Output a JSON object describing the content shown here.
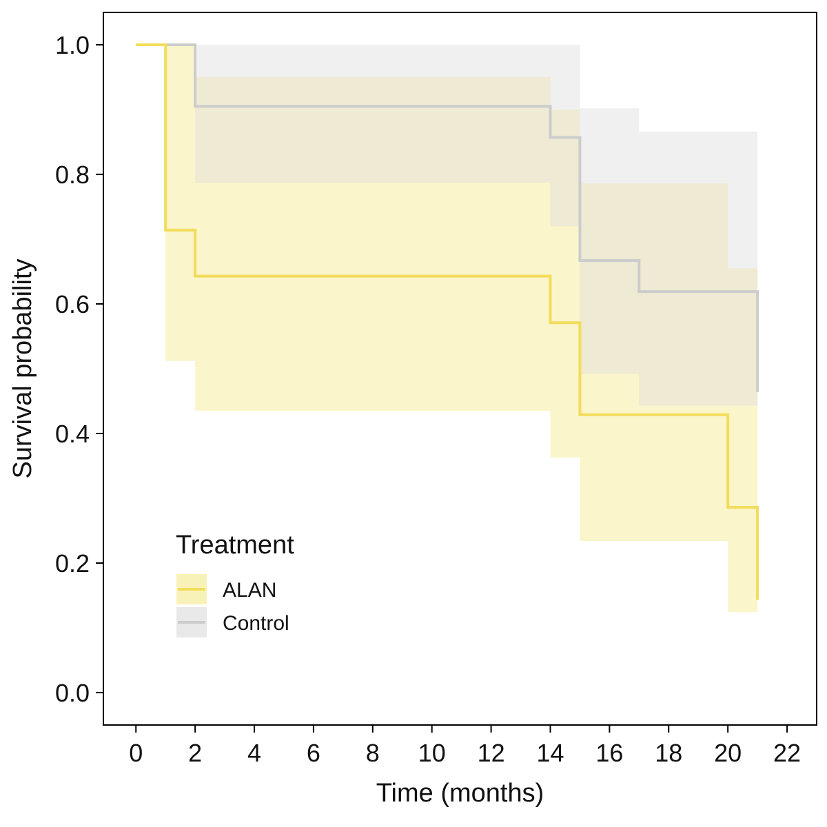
{
  "chart_data": {
    "type": "line",
    "subtype": "kaplan-meier step survival curve with confidence bands",
    "title": "",
    "xlabel": "Time (months)",
    "ylabel": "Survival probability",
    "xlim": [
      -1.1,
      23
    ],
    "ylim": [
      -0.05,
      1.05
    ],
    "xticks": [
      0,
      2,
      4,
      6,
      8,
      10,
      12,
      14,
      16,
      18,
      20,
      22
    ],
    "xtick_labels": [
      "0",
      "2",
      "4",
      "6",
      "8",
      "10",
      "12",
      "14",
      "16",
      "18",
      "20",
      "22"
    ],
    "yticks": [
      0.0,
      0.2,
      0.4,
      0.6,
      0.8,
      1.0
    ],
    "ytick_labels": [
      "0.0",
      "0.2",
      "0.4",
      "0.6",
      "0.8",
      "1.0"
    ],
    "grid": false,
    "legend": {
      "title": "Treatment",
      "placement": "bottom-left inside plot",
      "entries": [
        "ALAN",
        "Control"
      ]
    },
    "series": [
      {
        "name": "ALAN",
        "line_color": "#f2dd5a",
        "band_color": "#f7eda0",
        "band_opacity": 0.55,
        "steps": [
          {
            "t0": 0,
            "t1": 1,
            "s": 1.0,
            "lo": 1.0,
            "hi": 1.0
          },
          {
            "t0": 1,
            "t1": 2,
            "s": 0.714,
            "lo": 0.512,
            "hi": 1.0
          },
          {
            "t0": 2,
            "t1": 14,
            "s": 0.643,
            "lo": 0.435,
            "hi": 0.95
          },
          {
            "t0": 14,
            "t1": 15,
            "s": 0.571,
            "lo": 0.363,
            "hi": 0.9
          },
          {
            "t0": 15,
            "t1": 20,
            "s": 0.429,
            "lo": 0.234,
            "hi": 0.786
          },
          {
            "t0": 20,
            "t1": 21,
            "s": 0.286,
            "lo": 0.124,
            "hi": 0.655
          },
          {
            "t0": 21,
            "t1": 21,
            "s": 0.143,
            "lo": null,
            "hi": null
          }
        ]
      },
      {
        "name": "Control",
        "line_color": "#cccccc",
        "band_color": "#dddddd",
        "band_opacity": 0.45,
        "steps": [
          {
            "t0": 0,
            "t1": 2,
            "s": 1.0,
            "lo": 1.0,
            "hi": 1.0
          },
          {
            "t0": 2,
            "t1": 14,
            "s": 0.905,
            "lo": 0.787,
            "hi": 1.0
          },
          {
            "t0": 14,
            "t1": 15,
            "s": 0.857,
            "lo": 0.72,
            "hi": 1.0
          },
          {
            "t0": 15,
            "t1": 17,
            "s": 0.667,
            "lo": 0.492,
            "hi": 0.902
          },
          {
            "t0": 17,
            "t1": 21,
            "s": 0.619,
            "lo": 0.443,
            "hi": 0.866
          },
          {
            "t0": 21,
            "t1": 21,
            "s": 0.464,
            "lo": null,
            "hi": null
          }
        ]
      }
    ]
  }
}
